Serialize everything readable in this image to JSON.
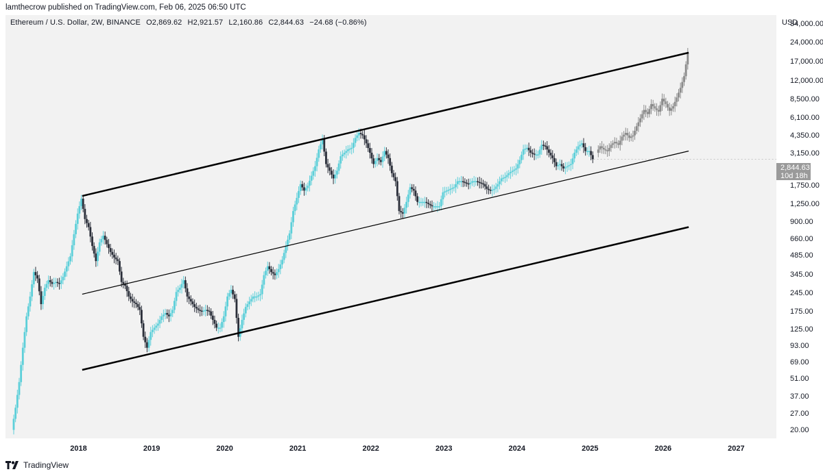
{
  "header": {
    "published_text": "lamthecrow published on TradingView.com, Feb 06, 2025 06:50 UTC"
  },
  "legend": {
    "symbol": "Ethereum / U.S. Dollar, 2W, BINANCE",
    "open": "O2,869.62",
    "high": "H2,921.57",
    "low": "L2,160.86",
    "close": "C2,844.63",
    "change": "−24.68 (−0.86%)"
  },
  "axis": {
    "currency": "USD",
    "price_label": "2,844.63",
    "countdown": "10d 18h"
  },
  "footer": {
    "brand": "TradingView"
  },
  "colors": {
    "up": "#5ccfd9",
    "down": "#2a2e39",
    "projection": "#8a8a8a",
    "channel": "#000000",
    "background": "#f2f2f2"
  },
  "chart_data": {
    "type": "candlestick",
    "title": "",
    "y_scale": "log",
    "y_range": [
      18,
      36000
    ],
    "x_range": [
      2017.0,
      2027.55
    ],
    "y_ticks": [
      {
        "value": 34000,
        "label": "34,000.00"
      },
      {
        "value": 24000,
        "label": "24,000.00"
      },
      {
        "value": 17000,
        "label": "17,000.00"
      },
      {
        "value": 12000,
        "label": "12,000.00"
      },
      {
        "value": 8500,
        "label": "8,500.00"
      },
      {
        "value": 6100,
        "label": "6,100.00"
      },
      {
        "value": 4350,
        "label": "4,350.00"
      },
      {
        "value": 3150,
        "label": "3,150.00"
      },
      {
        "value": 1750,
        "label": "1,750.00"
      },
      {
        "value": 1250,
        "label": "1,250.00"
      },
      {
        "value": 900,
        "label": "900.00"
      },
      {
        "value": 660,
        "label": "660.00"
      },
      {
        "value": 485,
        "label": "485.00"
      },
      {
        "value": 345,
        "label": "345.00"
      },
      {
        "value": 245,
        "label": "245.00"
      },
      {
        "value": 175,
        "label": "175.00"
      },
      {
        "value": 125,
        "label": "125.00"
      },
      {
        "value": 93,
        "label": "93.00"
      },
      {
        "value": 69,
        "label": "69.00"
      },
      {
        "value": 51,
        "label": "51.00"
      },
      {
        "value": 37,
        "label": "37.00"
      },
      {
        "value": 27,
        "label": "27.00"
      },
      {
        "value": 20,
        "label": "20.00"
      }
    ],
    "x_ticks": [
      {
        "value": 2018,
        "label": "2018"
      },
      {
        "value": 2019,
        "label": "2019"
      },
      {
        "value": 2020,
        "label": "2020"
      },
      {
        "value": 2021,
        "label": "2021"
      },
      {
        "value": 2022,
        "label": "2022"
      },
      {
        "value": 2023,
        "label": "2023"
      },
      {
        "value": 2024,
        "label": "2024"
      },
      {
        "value": 2025,
        "label": "2025"
      },
      {
        "value": 2026,
        "label": "2026"
      },
      {
        "value": 2027,
        "label": "2027"
      }
    ],
    "price_path": [
      [
        2017.1,
        20
      ],
      [
        2017.15,
        30
      ],
      [
        2017.2,
        48
      ],
      [
        2017.25,
        90
      ],
      [
        2017.3,
        160
      ],
      [
        2017.35,
        230
      ],
      [
        2017.4,
        360
      ],
      [
        2017.45,
        320
      ],
      [
        2017.5,
        200
      ],
      [
        2017.55,
        270
      ],
      [
        2017.6,
        310
      ],
      [
        2017.65,
        290
      ],
      [
        2017.7,
        300
      ],
      [
        2017.75,
        290
      ],
      [
        2017.8,
        330
      ],
      [
        2017.85,
        400
      ],
      [
        2017.9,
        480
      ],
      [
        2017.95,
        720
      ],
      [
        2018.0,
        1050
      ],
      [
        2018.05,
        1380
      ],
      [
        2018.1,
        950
      ],
      [
        2018.15,
        820
      ],
      [
        2018.2,
        580
      ],
      [
        2018.25,
        440
      ],
      [
        2018.3,
        620
      ],
      [
        2018.35,
        700
      ],
      [
        2018.4,
        600
      ],
      [
        2018.45,
        520
      ],
      [
        2018.5,
        470
      ],
      [
        2018.55,
        440
      ],
      [
        2018.6,
        300
      ],
      [
        2018.65,
        280
      ],
      [
        2018.7,
        230
      ],
      [
        2018.75,
        210
      ],
      [
        2018.8,
        200
      ],
      [
        2018.85,
        180
      ],
      [
        2018.9,
        110
      ],
      [
        2018.95,
        90
      ],
      [
        2019.0,
        120
      ],
      [
        2019.05,
        130
      ],
      [
        2019.1,
        140
      ],
      [
        2019.15,
        160
      ],
      [
        2019.2,
        170
      ],
      [
        2019.25,
        160
      ],
      [
        2019.3,
        180
      ],
      [
        2019.35,
        250
      ],
      [
        2019.4,
        270
      ],
      [
        2019.45,
        310
      ],
      [
        2019.5,
        230
      ],
      [
        2019.55,
        210
      ],
      [
        2019.6,
        190
      ],
      [
        2019.65,
        180
      ],
      [
        2019.7,
        175
      ],
      [
        2019.75,
        180
      ],
      [
        2019.8,
        175
      ],
      [
        2019.85,
        150
      ],
      [
        2019.9,
        130
      ],
      [
        2019.95,
        130
      ],
      [
        2020.0,
        160
      ],
      [
        2020.05,
        230
      ],
      [
        2020.1,
        260
      ],
      [
        2020.15,
        220
      ],
      [
        2020.2,
        110
      ],
      [
        2020.25,
        150
      ],
      [
        2020.3,
        190
      ],
      [
        2020.35,
        210
      ],
      [
        2020.4,
        230
      ],
      [
        2020.45,
        230
      ],
      [
        2020.5,
        240
      ],
      [
        2020.55,
        340
      ],
      [
        2020.6,
        400
      ],
      [
        2020.65,
        360
      ],
      [
        2020.7,
        340
      ],
      [
        2020.75,
        380
      ],
      [
        2020.8,
        450
      ],
      [
        2020.85,
        580
      ],
      [
        2020.9,
        730
      ],
      [
        2020.95,
        1100
      ],
      [
        2021.0,
        1400
      ],
      [
        2021.05,
        1800
      ],
      [
        2021.1,
        1600
      ],
      [
        2021.15,
        1750
      ],
      [
        2021.2,
        2100
      ],
      [
        2021.25,
        2500
      ],
      [
        2021.3,
        3400
      ],
      [
        2021.35,
        4100
      ],
      [
        2021.4,
        2600
      ],
      [
        2021.45,
        2300
      ],
      [
        2021.5,
        2000
      ],
      [
        2021.55,
        2300
      ],
      [
        2021.6,
        3000
      ],
      [
        2021.65,
        3200
      ],
      [
        2021.7,
        3400
      ],
      [
        2021.75,
        3500
      ],
      [
        2021.8,
        4200
      ],
      [
        2021.85,
        4600
      ],
      [
        2021.9,
        4400
      ],
      [
        2021.95,
        3800
      ],
      [
        2022.0,
        3200
      ],
      [
        2022.05,
        2600
      ],
      [
        2022.1,
        2900
      ],
      [
        2022.15,
        2700
      ],
      [
        2022.2,
        3300
      ],
      [
        2022.25,
        2900
      ],
      [
        2022.3,
        2200
      ],
      [
        2022.35,
        1900
      ],
      [
        2022.4,
        1100
      ],
      [
        2022.45,
        1050
      ],
      [
        2022.5,
        1300
      ],
      [
        2022.55,
        1700
      ],
      [
        2022.6,
        1600
      ],
      [
        2022.65,
        1300
      ],
      [
        2022.7,
        1300
      ],
      [
        2022.75,
        1300
      ],
      [
        2022.8,
        1250
      ],
      [
        2022.85,
        1200
      ],
      [
        2022.9,
        1200
      ],
      [
        2022.95,
        1200
      ],
      [
        2023.0,
        1550
      ],
      [
        2023.05,
        1600
      ],
      [
        2023.1,
        1650
      ],
      [
        2023.15,
        1700
      ],
      [
        2023.2,
        1900
      ],
      [
        2023.25,
        1900
      ],
      [
        2023.3,
        1850
      ],
      [
        2023.35,
        1800
      ],
      [
        2023.4,
        1900
      ],
      [
        2023.45,
        1900
      ],
      [
        2023.5,
        1850
      ],
      [
        2023.55,
        1800
      ],
      [
        2023.6,
        1650
      ],
      [
        2023.65,
        1600
      ],
      [
        2023.7,
        1650
      ],
      [
        2023.75,
        1800
      ],
      [
        2023.8,
        2000
      ],
      [
        2023.85,
        2050
      ],
      [
        2023.9,
        2200
      ],
      [
        2023.95,
        2300
      ],
      [
        2024.0,
        2400
      ],
      [
        2024.05,
        2800
      ],
      [
        2024.1,
        3400
      ],
      [
        2024.15,
        3500
      ],
      [
        2024.2,
        3200
      ],
      [
        2024.25,
        3100
      ],
      [
        2024.3,
        3100
      ],
      [
        2024.35,
        3700
      ],
      [
        2024.4,
        3600
      ],
      [
        2024.45,
        3200
      ],
      [
        2024.5,
        2900
      ],
      [
        2024.55,
        2500
      ],
      [
        2024.6,
        2600
      ],
      [
        2024.65,
        2400
      ],
      [
        2024.7,
        2500
      ],
      [
        2024.75,
        2600
      ],
      [
        2024.8,
        3200
      ],
      [
        2024.85,
        3600
      ],
      [
        2024.9,
        3800
      ],
      [
        2024.95,
        3300
      ],
      [
        2025.0,
        3300
      ],
      [
        2025.05,
        2844
      ]
    ],
    "projection_path": [
      [
        2025.1,
        3200
      ],
      [
        2025.15,
        3600
      ],
      [
        2025.2,
        3400
      ],
      [
        2025.25,
        3300
      ],
      [
        2025.3,
        3700
      ],
      [
        2025.35,
        3900
      ],
      [
        2025.4,
        3700
      ],
      [
        2025.45,
        4300
      ],
      [
        2025.5,
        4600
      ],
      [
        2025.55,
        4200
      ],
      [
        2025.6,
        4400
      ],
      [
        2025.65,
        5200
      ],
      [
        2025.7,
        6000
      ],
      [
        2025.75,
        7000
      ],
      [
        2025.8,
        6500
      ],
      [
        2025.85,
        7800
      ],
      [
        2025.9,
        7200
      ],
      [
        2025.95,
        6800
      ],
      [
        2026.0,
        8600
      ],
      [
        2026.05,
        7800
      ],
      [
        2026.1,
        6900
      ],
      [
        2026.15,
        7500
      ],
      [
        2026.2,
        8800
      ],
      [
        2026.25,
        10500
      ],
      [
        2026.3,
        13000
      ],
      [
        2026.35,
        20000
      ]
    ],
    "channel_lines": [
      {
        "name": "upper",
        "from": [
          2018.05,
          1450
        ],
        "to": [
          2026.35,
          20000
        ],
        "width": 2.5
      },
      {
        "name": "middle",
        "from": [
          2018.05,
          240
        ],
        "to": [
          2026.35,
          3300
        ],
        "width": 1.2
      },
      {
        "name": "lower",
        "from": [
          2018.05,
          60
        ],
        "to": [
          2026.35,
          820
        ],
        "width": 2.5
      }
    ]
  }
}
